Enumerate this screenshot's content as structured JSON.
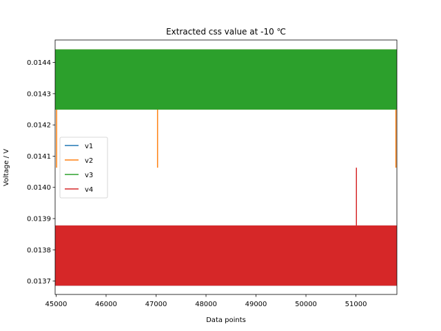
{
  "chart_data": {
    "type": "line",
    "title": "Extracted css value at -10 ℃",
    "xlabel": "Data points",
    "ylabel": "Voltage / V",
    "xlim": [
      44980,
      51820
    ],
    "ylim": [
      0.013657,
      0.014472
    ],
    "x_ticks": [
      45000,
      46000,
      47000,
      48000,
      49000,
      50000,
      51000
    ],
    "y_ticks": [
      0.0137,
      0.0138,
      0.0139,
      0.014,
      0.0141,
      0.0142,
      0.0143,
      0.0144
    ],
    "grid": false,
    "legend_position": "center-left",
    "series": [
      {
        "name": "v1",
        "color": "#1f77b4",
        "render": "band",
        "x_range": [
          44980,
          51820
        ],
        "band": [
          0.013685,
          0.013878
        ],
        "spikes": []
      },
      {
        "name": "v2",
        "color": "#ff7f0e",
        "render": "band",
        "x_range": [
          44980,
          51820
        ],
        "band": [
          0.014249,
          0.014442
        ],
        "spikes": [
          {
            "x": 45010,
            "y": 0.014063
          },
          {
            "x": 47030,
            "y": 0.014063
          },
          {
            "x": 51800,
            "y": 0.014063
          }
        ]
      },
      {
        "name": "v3",
        "color": "#2ca02c",
        "render": "band",
        "x_range": [
          44980,
          51820
        ],
        "band": [
          0.014249,
          0.014442
        ],
        "spikes": []
      },
      {
        "name": "v4",
        "color": "#d62728",
        "render": "band",
        "x_range": [
          44980,
          51820
        ],
        "band": [
          0.013685,
          0.013878
        ],
        "spikes": [
          {
            "x": 51010,
            "y": 0.014063
          }
        ]
      }
    ]
  }
}
